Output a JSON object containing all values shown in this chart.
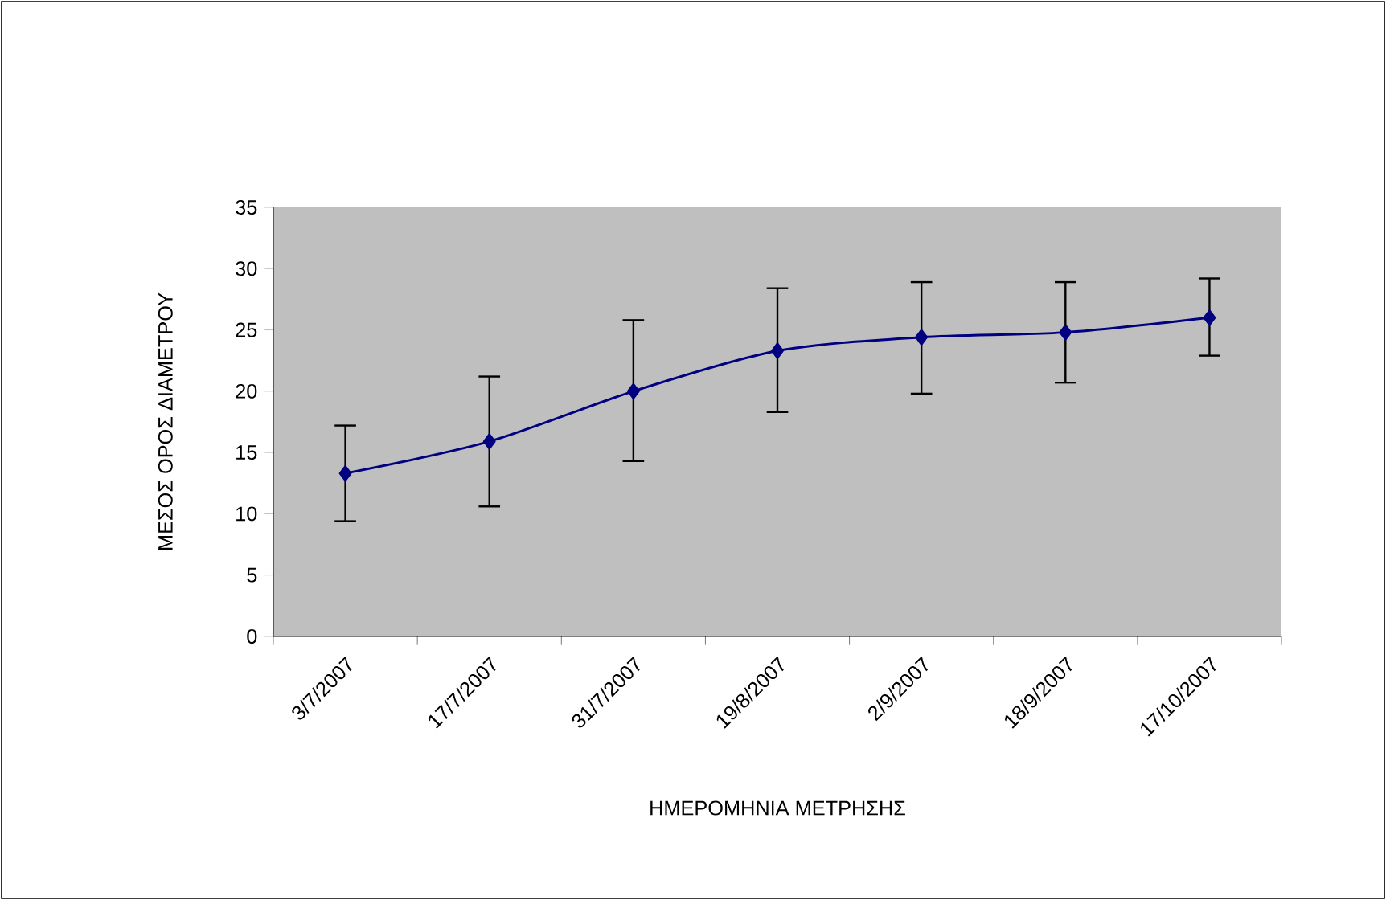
{
  "chart_data": {
    "type": "line",
    "xlabel": "ΗΜΕΡΟΜΗΝΙΑ ΜΕΤΡΗΣΗΣ",
    "ylabel": "ΜΕΣΟΣ ΟΡΟΣ ΔΙΑΜΕΤΡΟΥ",
    "categories": [
      "3/7/2007",
      "17/7/2007",
      "31/7/2007",
      "19/8/2007",
      "2/9/2007",
      "18/9/2007",
      "17/10/2007"
    ],
    "series": [
      {
        "color": "#000080",
        "values": [
          13.3,
          15.9,
          20.0,
          23.3,
          24.4,
          24.8,
          26.0
        ],
        "errors": [
          [
            9.4,
            17.2
          ],
          [
            10.6,
            21.2
          ],
          [
            14.3,
            25.8
          ],
          [
            18.3,
            28.4
          ],
          [
            19.8,
            28.9
          ],
          [
            20.7,
            28.9
          ],
          [
            22.9,
            29.2
          ]
        ]
      }
    ],
    "ylim": [
      0,
      35
    ],
    "yticks": [
      0,
      5,
      10,
      15,
      20,
      25,
      30,
      35
    ],
    "grid": false,
    "marker": "diamond",
    "line_style": "solid"
  }
}
